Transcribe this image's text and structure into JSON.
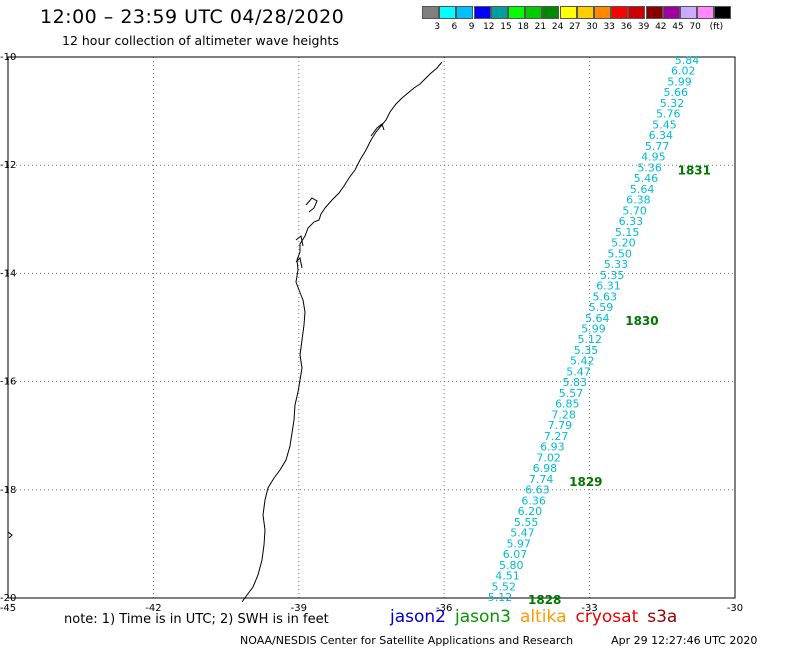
{
  "header": {
    "title": "12:00 – 23:59 UTC 04/28/2020",
    "subtitle": "12 hour collection of altimeter wave heights"
  },
  "legend": {
    "unit": "(ft)",
    "swatches": [
      {
        "label": "",
        "color": "#808080"
      },
      {
        "label": "3",
        "color": "#00ffff"
      },
      {
        "label": "6",
        "color": "#00c0ff"
      },
      {
        "label": "9",
        "color": "#0000ff"
      },
      {
        "label": "12",
        "color": "#00a0a0"
      },
      {
        "label": "15",
        "color": "#00ff00"
      },
      {
        "label": "18",
        "color": "#00cc00"
      },
      {
        "label": "21",
        "color": "#008800"
      },
      {
        "label": "24",
        "color": "#ffff00"
      },
      {
        "label": "27",
        "color": "#ffcc00"
      },
      {
        "label": "30",
        "color": "#ff8800"
      },
      {
        "label": "33",
        "color": "#ff0000"
      },
      {
        "label": "36",
        "color": "#cc0000"
      },
      {
        "label": "39",
        "color": "#880000"
      },
      {
        "label": "42",
        "color": "#a000a0"
      },
      {
        "label": "45",
        "color": "#ccaaff"
      },
      {
        "label": "70",
        "color": "#ff88ff"
      },
      {
        "label": "",
        "color": "#000000"
      }
    ]
  },
  "map": {
    "lat_labels": [
      "-10",
      "-12",
      "-14",
      "-16",
      "-18",
      "-20"
    ],
    "lon_labels": [
      "-45",
      "-42",
      "-39",
      "-36",
      "-33",
      "-30"
    ],
    "wave_color": "#00bcd4",
    "pass_color": "#007700",
    "wave_heights": [
      "5.84",
      "6.02",
      "5.99",
      "5.66",
      "5.32",
      "5.76",
      "5.45",
      "6.34",
      "5.77",
      "4.95",
      "5.36",
      "5.46",
      "5.64",
      "6.38",
      "5.70",
      "6.33",
      "5.15",
      "5.20",
      "5.50",
      "5.33",
      "5.35",
      "6.31",
      "5.63",
      "5.59",
      "5.64",
      "5.99",
      "5.12",
      "5.35",
      "5.42",
      "5.47",
      "5.83",
      "5.57",
      "6.85",
      "7.28",
      "7.79",
      "7.27",
      "6.93",
      "7.02",
      "6.98",
      "7.74",
      "6.63",
      "6.36",
      "6.20",
      "5.55",
      "5.47",
      "5.97",
      "6.07",
      "5.80",
      "4.51",
      "5.52",
      "5.12"
    ],
    "pass_labels": [
      {
        "label": "1831",
        "after": 10
      },
      {
        "label": "1830",
        "after": 24
      },
      {
        "label": "1829",
        "after": 39
      },
      {
        "label": "1828",
        "after": 50
      }
    ]
  },
  "note": "note: 1) Time is in UTC; 2) SWH is in feet",
  "satellites": [
    {
      "name": "jason2",
      "color": "#0000cc"
    },
    {
      "name": "jason3",
      "color": "#009900"
    },
    {
      "name": "altika",
      "color": "#ff9900"
    },
    {
      "name": "cryosat",
      "color": "#ee0000"
    },
    {
      "name": "s3a",
      "color": "#990000"
    }
  ],
  "footer": {
    "center": "NOAA/NESDIS Center for Satellite Applications and Research",
    "timestamp": "Apr 29 12:27:46 UTC 2020"
  }
}
